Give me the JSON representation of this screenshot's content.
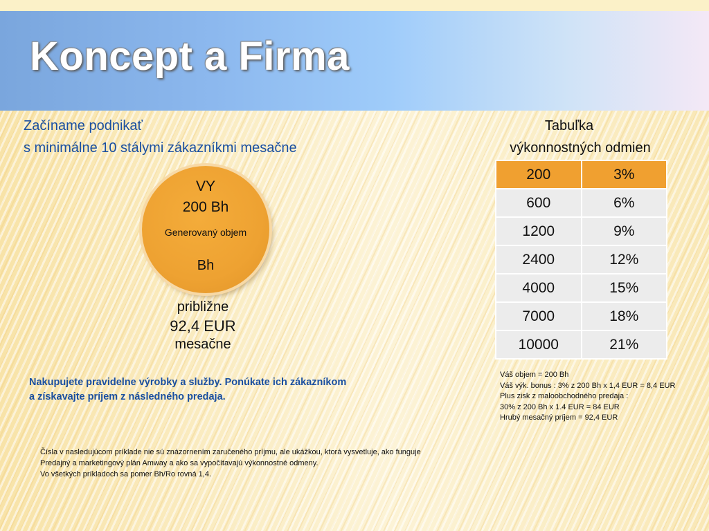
{
  "slide": {
    "title": "Koncept a Firma",
    "heading_line1": "Začíname podnikať",
    "heading_line2": "s minimálne 10 stálymi zákazníkmi mesačne"
  },
  "circle": {
    "line1": "VY",
    "line2": "200 Bh",
    "line3": "Generovaný objem",
    "line4": "Bh",
    "below_line1": "približne",
    "below_line2": "92,4 EUR",
    "below_line3": "mesačne"
  },
  "table": {
    "title_line1": "Tabuľka",
    "title_line2": "výkonnostných odmien",
    "header": [
      "200",
      "3%"
    ],
    "rows": [
      [
        "600",
        "6%"
      ],
      [
        "1200",
        "9%"
      ],
      [
        "2400",
        "12%"
      ],
      [
        "4000",
        "15%"
      ],
      [
        "7000",
        "18%"
      ],
      [
        "10000",
        "21%"
      ]
    ],
    "header_color": "#f0a030",
    "row_color": "#ececec"
  },
  "calculation": [
    "Váš objem = 200 Bh",
    "Váš výk. bonus : 3% z 200 Bh x 1,4 EUR = 8,4 EUR",
    "Plus zisk z maloobchodného predaja :",
    "30% z 200 Bh x 1.4 EUR = 84 EUR",
    "Hrubý mesačný príjem = 92,4 EUR"
  ],
  "middle_note": [
    "Nakupujete  pravidelne výrobky a služby. Ponúkate ich zákazníkom",
    "a získavajte príjem  z následného predaja."
  ],
  "disclaimer": [
    "Čísla v nasledujúcom príklade nie sú znázornením zaručeného príjmu, ale ukážkou, ktorá vysvetluje, ako funguje",
    "Predajný a marketingový plán Amway a ako sa vypočítavajú výkonnostné odmeny.",
    "Vo všetkých príkladoch sa pomer Bh/Ro rovná 1,4."
  ],
  "colors": {
    "title_band_start": "#7aa6dd",
    "heading_blue": "#1a4fa0",
    "circle_orange": "#eea232"
  }
}
